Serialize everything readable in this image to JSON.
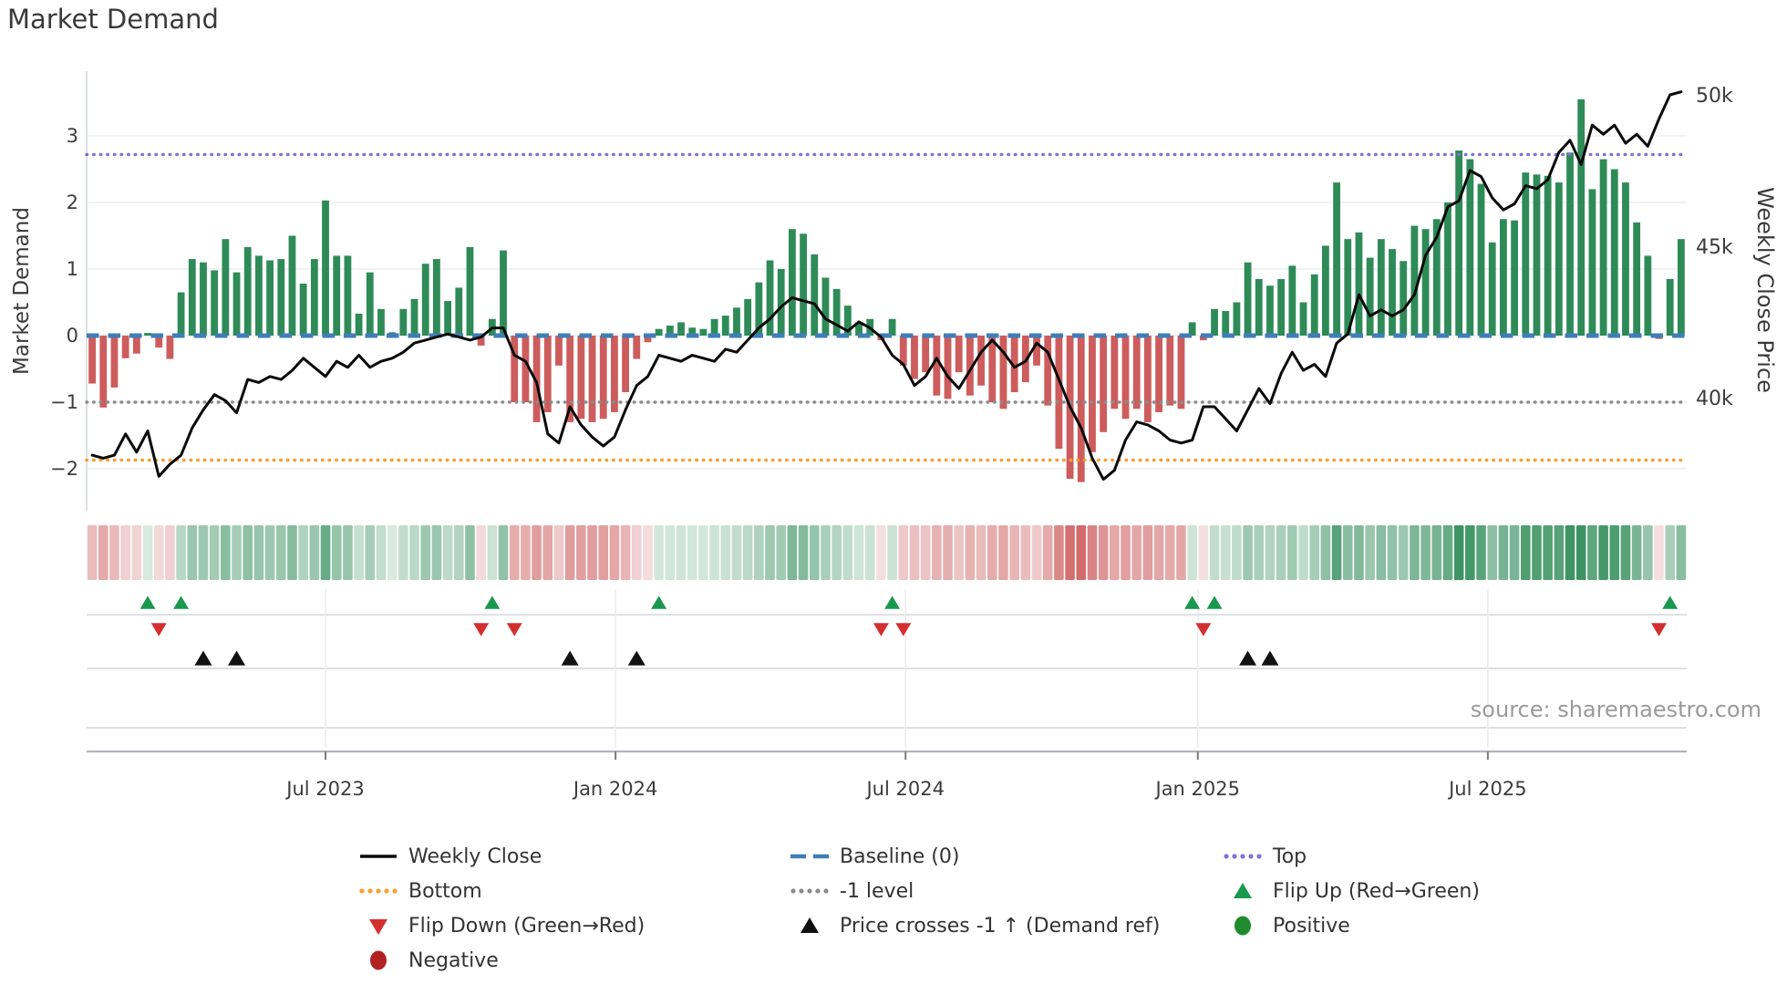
{
  "title": "Market Demand",
  "source": "source: sharemaestro.com",
  "left_axis": {
    "label": "Market Demand",
    "ticks": [
      {
        "v": 3,
        "t": "3"
      },
      {
        "v": 2,
        "t": "2"
      },
      {
        "v": 1,
        "t": "1"
      },
      {
        "v": 0,
        "t": "0"
      },
      {
        "v": -1,
        "t": "−1"
      },
      {
        "v": -2,
        "t": "−2"
      }
    ]
  },
  "right_axis": {
    "label": "Weekly Close Price",
    "ticks": [
      {
        "p": 50,
        "t": "50k"
      },
      {
        "p": 45,
        "t": "45k"
      },
      {
        "p": 40,
        "t": "40k"
      }
    ]
  },
  "x_axis": {
    "ticks": [
      {
        "week": 21.5,
        "label": "Jul 2023"
      },
      {
        "week": 47.6,
        "label": "Jan 2024"
      },
      {
        "week": 73.7,
        "label": "Jul 2024"
      },
      {
        "week": 100.0,
        "label": "Jan 2025"
      },
      {
        "week": 126.1,
        "label": "Jul 2025"
      }
    ]
  },
  "ref_lines": [
    {
      "name": "top",
      "label": "Top",
      "value": 2.72,
      "style": "dotted",
      "color": "#7d73d6"
    },
    {
      "name": "baseline",
      "label": "Baseline (0)",
      "value": 0,
      "style": "dashed",
      "color": "#3f7db8"
    },
    {
      "name": "minus1",
      "label": "-1 level",
      "value": -1.0,
      "style": "dotted",
      "color": "#8c8c8c"
    },
    {
      "name": "bottom",
      "label": "Bottom",
      "value": -1.87,
      "style": "dotted",
      "color": "#f5a032"
    }
  ],
  "chart_data": {
    "type": "bar+line",
    "x_unit": "weekly",
    "x_tick_labels": [
      "Jul 2023",
      "Jan 2024",
      "Jul 2024",
      "Jan 2025",
      "Jul 2025"
    ],
    "left_ylim": [
      -2.6,
      3.9
    ],
    "right_axis_ticks_k": [
      40,
      45,
      50
    ],
    "grid": "horizontal-light",
    "series": [
      {
        "name": "Market Demand",
        "type": "bar",
        "axis": "left",
        "positive_color": "#2e8b57",
        "negative_color": "#cd5c5c",
        "values": [
          -0.72,
          -1.08,
          -0.78,
          -0.34,
          -0.27,
          0.04,
          -0.18,
          -0.35,
          0.65,
          1.15,
          1.1,
          0.98,
          1.45,
          0.95,
          1.33,
          1.2,
          1.13,
          1.15,
          1.5,
          0.78,
          1.15,
          2.03,
          1.2,
          1.2,
          0.33,
          0.95,
          0.4,
          0.05,
          0.4,
          0.55,
          1.08,
          1.15,
          0.52,
          0.72,
          1.33,
          -0.15,
          0.25,
          1.28,
          -1.0,
          -1.0,
          -1.3,
          -1.15,
          -0.45,
          -1.3,
          -1.25,
          -1.3,
          -1.25,
          -1.15,
          -0.85,
          -0.35,
          -0.1,
          0.1,
          0.15,
          0.2,
          0.12,
          0.1,
          0.25,
          0.3,
          0.42,
          0.55,
          0.8,
          1.13,
          1.0,
          1.6,
          1.53,
          1.22,
          0.87,
          0.7,
          0.45,
          0.2,
          0.25,
          -0.07,
          0.25,
          -0.45,
          -0.65,
          -0.55,
          -0.9,
          -0.95,
          -0.55,
          -0.9,
          -0.75,
          -1.0,
          -1.1,
          -0.85,
          -0.7,
          -0.45,
          -1.05,
          -1.7,
          -2.15,
          -2.2,
          -1.75,
          -1.45,
          -1.1,
          -1.25,
          -1.1,
          -1.3,
          -1.15,
          -1.05,
          -1.1,
          0.2,
          -0.07,
          0.4,
          0.37,
          0.5,
          1.1,
          0.85,
          0.75,
          0.85,
          1.05,
          0.5,
          0.92,
          1.35,
          2.3,
          1.45,
          1.55,
          1.17,
          1.45,
          1.3,
          1.12,
          1.65,
          1.6,
          1.75,
          2.0,
          2.78,
          2.65,
          2.28,
          1.4,
          1.75,
          1.73,
          2.45,
          2.42,
          2.4,
          2.3,
          2.75,
          3.55,
          2.2,
          2.65,
          2.5,
          2.3,
          1.7,
          1.2,
          -0.05,
          0.85,
          1.45
        ]
      },
      {
        "name": "Weekly Close",
        "type": "line",
        "axis": "right",
        "unit": "k",
        "color": "#0a0a0a",
        "values": [
          38.1,
          38.0,
          38.1,
          38.8,
          38.2,
          38.9,
          37.4,
          37.8,
          38.1,
          39.0,
          39.6,
          40.1,
          39.9,
          39.5,
          40.6,
          40.5,
          40.7,
          40.6,
          40.9,
          41.3,
          41.0,
          40.7,
          41.2,
          41.0,
          41.4,
          41.0,
          41.2,
          41.3,
          41.5,
          41.8,
          41.9,
          42.0,
          42.1,
          42.0,
          41.9,
          42.0,
          42.3,
          42.3,
          41.4,
          41.2,
          40.5,
          38.8,
          38.5,
          39.7,
          39.1,
          38.7,
          38.4,
          38.7,
          39.6,
          40.4,
          40.7,
          41.4,
          41.3,
          41.2,
          41.4,
          41.3,
          41.2,
          41.6,
          41.5,
          41.9,
          42.3,
          42.6,
          43.0,
          43.3,
          43.2,
          43.1,
          42.6,
          42.4,
          42.2,
          42.5,
          42.3,
          42.0,
          41.4,
          41.1,
          40.4,
          40.7,
          41.3,
          40.7,
          40.3,
          40.9,
          41.5,
          41.9,
          41.5,
          41.0,
          41.2,
          41.8,
          41.5,
          40.6,
          39.7,
          39.0,
          38.0,
          37.3,
          37.6,
          38.6,
          39.2,
          39.1,
          38.9,
          38.6,
          38.5,
          38.6,
          39.7,
          39.7,
          39.3,
          38.9,
          39.6,
          40.3,
          39.8,
          40.8,
          41.5,
          40.9,
          41.1,
          40.7,
          41.8,
          42.1,
          43.4,
          42.7,
          42.9,
          42.7,
          42.9,
          43.4,
          44.7,
          45.3,
          46.3,
          46.5,
          47.5,
          47.3,
          46.6,
          46.2,
          46.4,
          47.0,
          46.9,
          47.2,
          48.1,
          48.5,
          47.7,
          49.0,
          48.7,
          49.0,
          48.4,
          48.7,
          48.3,
          49.2,
          50.0,
          50.1
        ]
      }
    ],
    "heatmap": {
      "description": "weekly strip, color = sign and magnitude of Market Demand bars",
      "positive_rgb": [
        46,
        139,
        87
      ],
      "negative_rgb": [
        205,
        92,
        92
      ]
    },
    "markers": {
      "flip_up_weeks": [
        5,
        8,
        36,
        51,
        72,
        99,
        101,
        142
      ],
      "flip_down_weeks": [
        6,
        35,
        38,
        71,
        73,
        100,
        141
      ],
      "price_cross_weeks": [
        10,
        13,
        43,
        49,
        104,
        106
      ]
    }
  },
  "legend": {
    "columns": [
      [
        {
          "swatch": "line",
          "color": "#0a0a0a",
          "label": "Weekly Close"
        },
        {
          "swatch": "dotted",
          "color": "#f5a032",
          "label": "Bottom"
        },
        {
          "swatch": "tri-down",
          "color": "#d32f2f",
          "label": "Flip Down (Green→Red)"
        },
        {
          "swatch": "circle",
          "color": "#b22222",
          "label": "Negative"
        }
      ],
      [
        {
          "swatch": "dashed",
          "color": "#3f7db8",
          "label": "Baseline (0)"
        },
        {
          "swatch": "dotted",
          "color": "#8c8c8c",
          "label": "-1 level"
        },
        {
          "swatch": "tri-up",
          "color": "#111111",
          "label": "Price crosses -1 ↑ (Demand ref)"
        }
      ],
      [
        {
          "swatch": "dotted",
          "color": "#7d73d6",
          "label": "Top"
        },
        {
          "swatch": "tri-up",
          "color": "#1a9850",
          "label": "Flip Up (Red→Green)"
        },
        {
          "swatch": "circle",
          "color": "#1e8c2e",
          "label": "Positive"
        }
      ]
    ]
  },
  "colors": {
    "bar_positive": "#2e8b57",
    "bar_negative": "#cd5c5c",
    "price_line": "#0a0a0a",
    "baseline_blue": "#3f7db8",
    "top_purple": "#7d73d6",
    "bottom_orange": "#f5a032",
    "minus1_gray": "#8c8c8c",
    "flip_up_green": "#1a9850",
    "flip_down_red": "#d32f2f",
    "cross_black": "#111111",
    "grid": "#edeff3",
    "panel_line": "#d9dce1",
    "axis_line": "#b0b4ba",
    "tick_text": "#3c3c3c"
  }
}
